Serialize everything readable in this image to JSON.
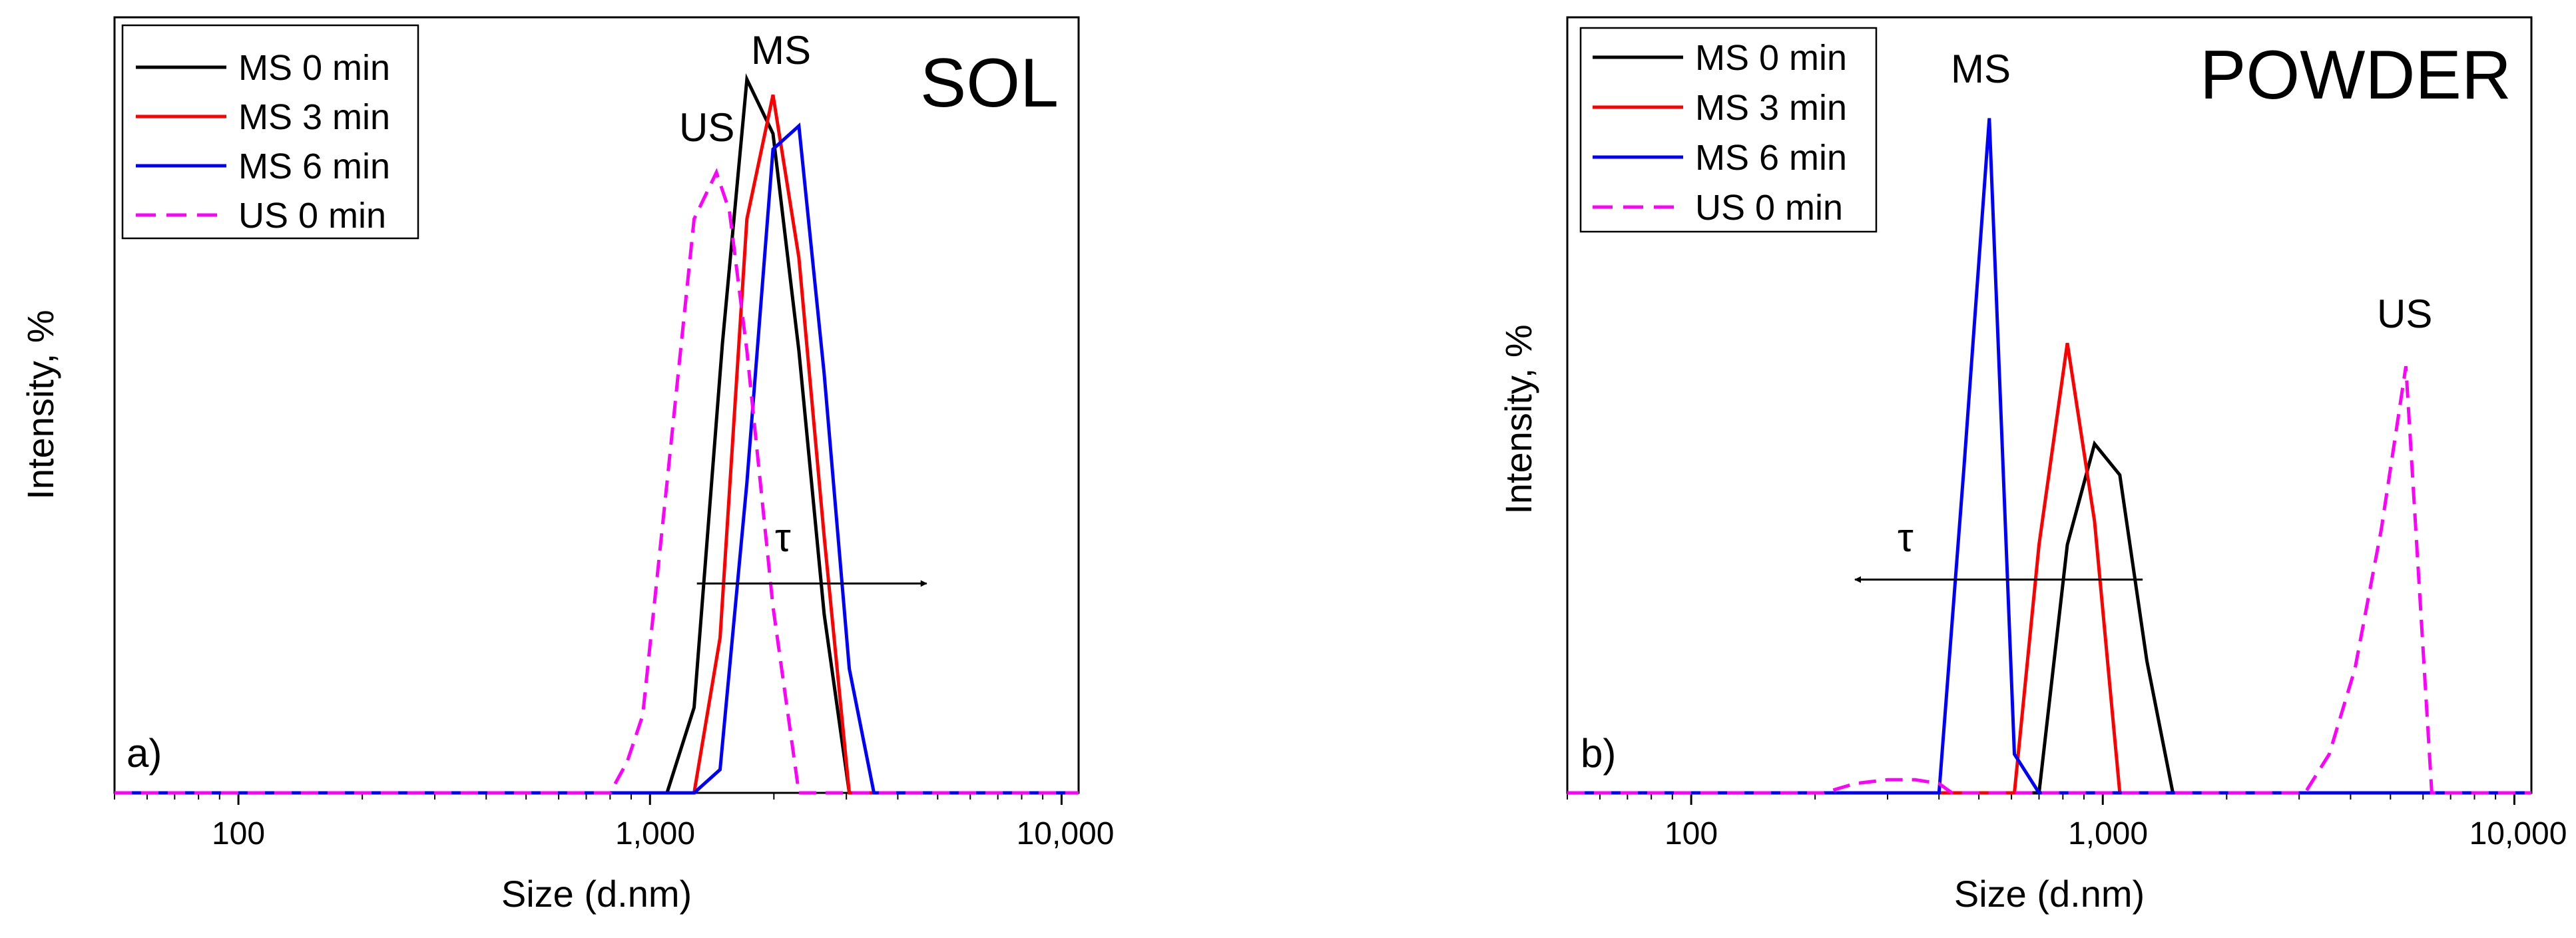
{
  "figure": {
    "background": "#ffffff"
  },
  "chart_data": [
    {
      "type": "line",
      "panel_label": "a)",
      "title": "SOL",
      "xlabel": "Size (d.nm)",
      "ylabel": "Intensity, %",
      "xscale": "log",
      "xlim": [
        50,
        11000
      ],
      "ylim": [
        0,
        100
      ],
      "x_ticks": [
        100,
        1000,
        10000
      ],
      "x_tick_labels": [
        "100",
        "1,000",
        "10,000"
      ],
      "legend_position": "top-left",
      "series": [
        {
          "name": "MS 0 min",
          "color": "#000000",
          "dash": "solid",
          "x": [
            50,
            1100,
            1280,
            1500,
            1720,
            1990,
            2300,
            2650,
            3050,
            11000
          ],
          "y": [
            0,
            0,
            11,
            58,
            92,
            85,
            57,
            23,
            0,
            0
          ]
        },
        {
          "name": "MS 3 min",
          "color": "#ff0000",
          "dash": "solid",
          "x": [
            50,
            1280,
            1480,
            1720,
            1990,
            2300,
            2650,
            3050,
            11000
          ],
          "y": [
            0,
            0,
            20,
            74,
            90,
            69,
            33,
            0,
            0
          ]
        },
        {
          "name": "MS 6 min",
          "color": "#0000ff",
          "dash": "solid",
          "x": [
            50,
            1280,
            1480,
            1720,
            1990,
            2300,
            2650,
            3050,
            3500,
            11000
          ],
          "y": [
            0,
            0,
            3,
            40,
            83,
            86,
            54,
            16,
            0,
            0
          ]
        },
        {
          "name": "US 0 min",
          "color": "#ff00ff",
          "dash": "dashed",
          "x": [
            50,
            800,
            880,
            960,
            1100,
            1280,
            1450,
            1560,
            1720,
            1990,
            2300,
            11000
          ],
          "y": [
            0,
            0,
            4,
            10,
            40,
            74,
            80,
            75,
            57,
            24,
            0,
            0
          ]
        }
      ],
      "annotations": [
        {
          "text": "MS",
          "x": 2050,
          "y": 95
        },
        {
          "text": "US",
          "x": 1350,
          "y": 84
        },
        {
          "text": "τ",
          "x": 2050,
          "y": 32
        }
      ],
      "arrow": {
        "from": 1300,
        "to": 4700,
        "y": 27,
        "direction": "right"
      }
    },
    {
      "type": "line",
      "panel_label": "b)",
      "title": "POWDER",
      "xlabel": "Size (d.nm)",
      "ylabel": "Intensity, %",
      "xscale": "log",
      "xlim": [
        50,
        11000
      ],
      "ylim": [
        0,
        100
      ],
      "x_ticks": [
        100,
        1000,
        10000
      ],
      "x_tick_labels": [
        "100",
        "1,000",
        "10,000"
      ],
      "legend_position": "top-left",
      "series": [
        {
          "name": "MS 0 min",
          "color": "#000000",
          "dash": "solid",
          "x": [
            50,
            700,
            820,
            955,
            1100,
            1280,
            1480,
            11000
          ],
          "y": [
            0,
            0,
            32,
            45,
            41,
            17,
            0,
            0
          ]
        },
        {
          "name": "MS 3 min",
          "color": "#ff0000",
          "dash": "solid",
          "x": [
            50,
            610,
            700,
            820,
            955,
            1100,
            11000
          ],
          "y": [
            0,
            0,
            32,
            58,
            35,
            0,
            0
          ]
        },
        {
          "name": "MS 6 min",
          "color": "#0000ff",
          "dash": "solid",
          "x": [
            50,
            400,
            460,
            530,
            610,
            700,
            11000
          ],
          "y": [
            0,
            0,
            42,
            87,
            5,
            0,
            0
          ]
        },
        {
          "name": "US 0 min",
          "color": "#ff00ff",
          "dash": "dashed",
          "x": [
            50,
            210,
            250,
            300,
            350,
            400,
            430,
            3100,
            3550,
            4100,
            4750,
            5450,
            6300,
            11000
          ],
          "y": [
            0,
            0,
            1.2,
            1.7,
            1.7,
            1.2,
            0,
            0,
            5,
            16,
            34,
            55,
            0,
            0
          ]
        }
      ],
      "annotations": [
        {
          "text": "MS",
          "x": 530,
          "y": 91
        },
        {
          "text": "US",
          "x": 5450,
          "y": 61
        },
        {
          "text": "τ",
          "x": 340,
          "y": 32
        }
      ],
      "arrow": {
        "from": 1250,
        "to": 250,
        "y": 27.5,
        "direction": "left"
      }
    }
  ]
}
